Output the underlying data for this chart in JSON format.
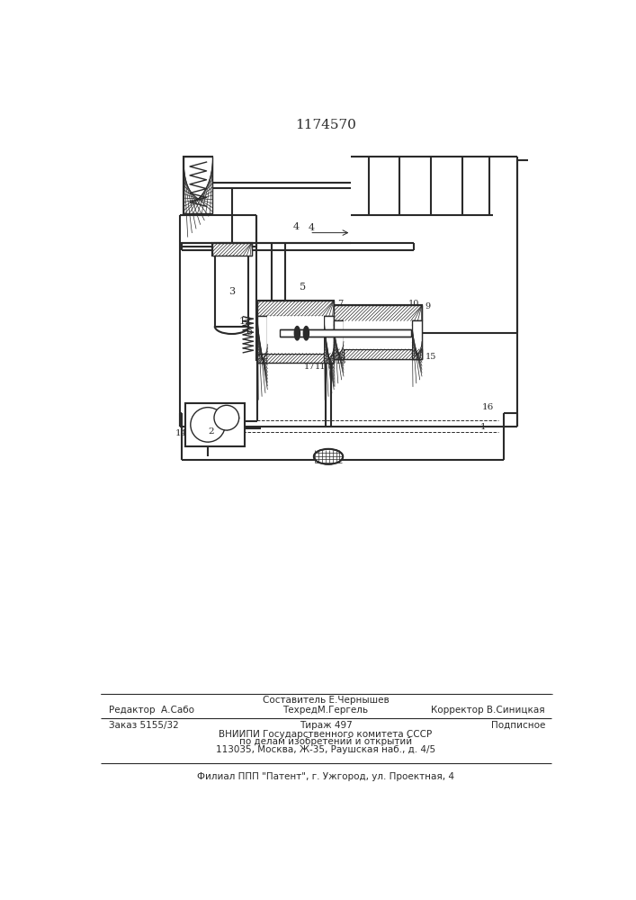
{
  "title": "1174570",
  "bg_color": "#ffffff",
  "line_color": "#2a2a2a",
  "footer": {
    "line1_text_center": "Составитель Е.Чернышев",
    "line2_left": "Редактор  А.Сабо",
    "line2_center": "ТехредМ.Гергель",
    "line2_right": "Корректор В.Синицкая",
    "line3_left": "Заказ 5155/32",
    "line3_center": "Тираж 497",
    "line3_right": "Подписное",
    "line4": "ВНИИПИ Государственного комитета СССР",
    "line5": "по делам изобретений и открытий",
    "line6": "113035, Москва, Ж-35, Раушская наб., д. 4/5",
    "line7": "Филиал ППП \"Патент\", г. Ужгород, ул. Проектная, 4"
  }
}
